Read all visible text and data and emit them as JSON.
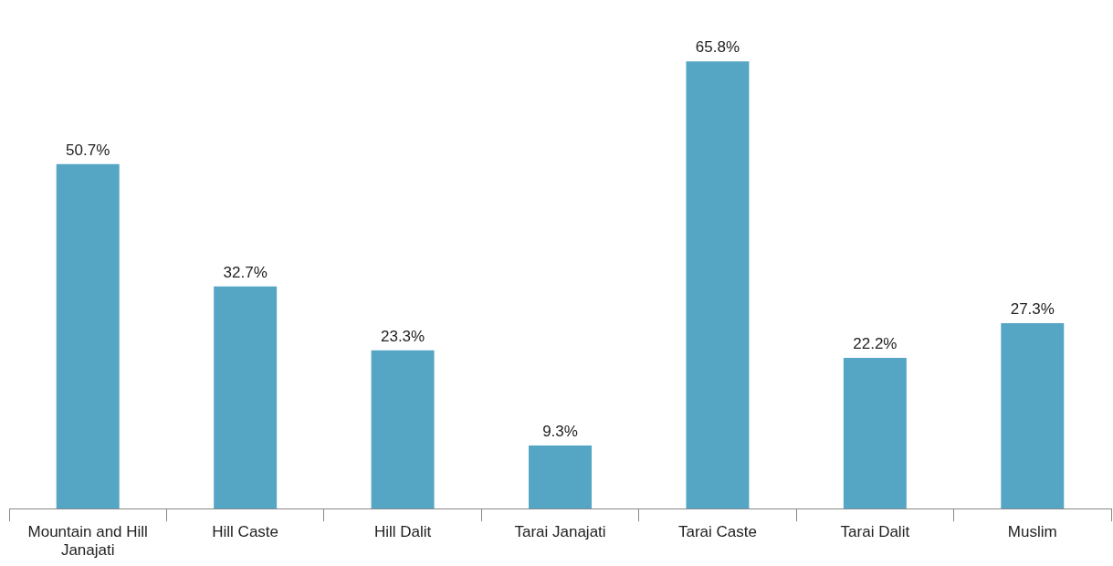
{
  "chart_data": {
    "type": "bar",
    "categories": [
      "Mountain and Hill Janajati",
      "Hill Caste",
      "Hill Dalit",
      "Tarai Janajati",
      "Tarai Caste",
      "Tarai Dalit",
      "Muslim"
    ],
    "values": [
      50.7,
      32.7,
      23.3,
      9.3,
      65.8,
      22.2,
      27.3
    ],
    "value_labels": [
      "50.7%",
      "32.7%",
      "23.3%",
      "9.3%",
      "65.8%",
      "22.2%",
      "27.3%"
    ],
    "color": "#55a5c5",
    "grid": false,
    "legend": false,
    "tick_labels": "x"
  }
}
